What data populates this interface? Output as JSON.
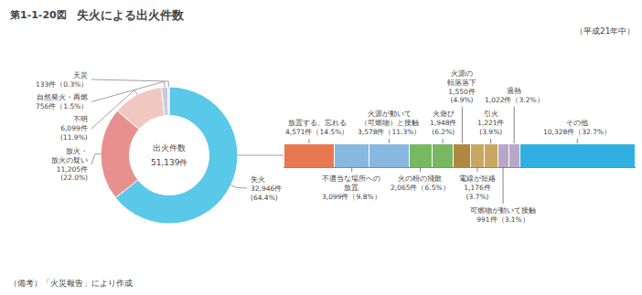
{
  "chart_data": [
    {
      "type": "pie",
      "title": "失火による出火件数",
      "subtitle": "（平成21年中）",
      "annotations": [
        "第1-1-20図",
        "出火件数",
        "51,139件",
        "（備考）「火災報告」により作成"
      ],
      "values": [
        64.4,
        22.0,
        11.9,
        1.5,
        0.3
      ],
      "value_labels": [
        "失火\n32,946件\n(64.4%)",
        "放火・\n放火の疑い\n11,205件\n(22.0%)",
        "不明\n6,099件\n(11.9%)",
        "自然発火・再燃\n756件（1.5%）",
        "天災\n133件（0.3%）"
      ],
      "colors": [
        "#5ac8e8",
        "#e89090",
        "#f0c8c0",
        "#c8c8e0",
        "#f0d0d0"
      ],
      "data_labels": true
    },
    {
      "type": "bar",
      "orientation": "horizontal",
      "stacked": true,
      "categories": [
        null
      ],
      "xlim": [
        0,
        100
      ],
      "tick_labels": false,
      "data_labels": true,
      "series": [
        {
          "color": "#e87850",
          "values": [
            14.5
          ],
          "value_labels": [
            "放置する、忘れる\n4,571件（14.5%）"
          ]
        },
        {
          "color": "#88b8e0",
          "values": [
            9.8
          ],
          "value_labels": [
            "不適当な場所への\n放置\n3,099件（9.8%）"
          ]
        },
        {
          "color": "#88b8e0",
          "values": [
            11.3
          ],
          "value_labels": [
            "火源が動いて\n（可燃物）と接触\n3,578件（11.3%）"
          ]
        },
        {
          "color": "#78b860",
          "values": [
            6.5
          ],
          "value_labels": [
            "火の粉の飛散\n2,065件（6.5%）"
          ]
        },
        {
          "color": "#78b860",
          "values": [
            6.2
          ],
          "value_labels": [
            "火遊び\n1,948件\n(6.2%)"
          ]
        },
        {
          "color": "#b08840",
          "values": [
            4.9
          ],
          "value_labels": [
            "火源の\n転落落下\n1,550件\n(4.9%)"
          ]
        },
        {
          "color": "#c8a860",
          "values": [
            3.7
          ],
          "value_labels": [
            "電線が短絡\n1,176件\n(3.7%)"
          ]
        },
        {
          "color": "#c8a860",
          "values": [
            3.9
          ],
          "value_labels": [
            "引火\n1,221件\n(3.9%)"
          ]
        },
        {
          "color": "#b8a8c8",
          "values": [
            3.1
          ],
          "value_labels": [
            "可燃物が動いて接触\n991件（3.1%）"
          ]
        },
        {
          "color": "#b8a8c8",
          "values": [
            3.2
          ],
          "value_labels": [
            "過熱\n1,022件（3.2%）"
          ]
        },
        {
          "color": "#30b0e0",
          "values": [
            32.7
          ],
          "value_labels": [
            "その他\n10,328件（32.7%）"
          ]
        }
      ]
    }
  ]
}
